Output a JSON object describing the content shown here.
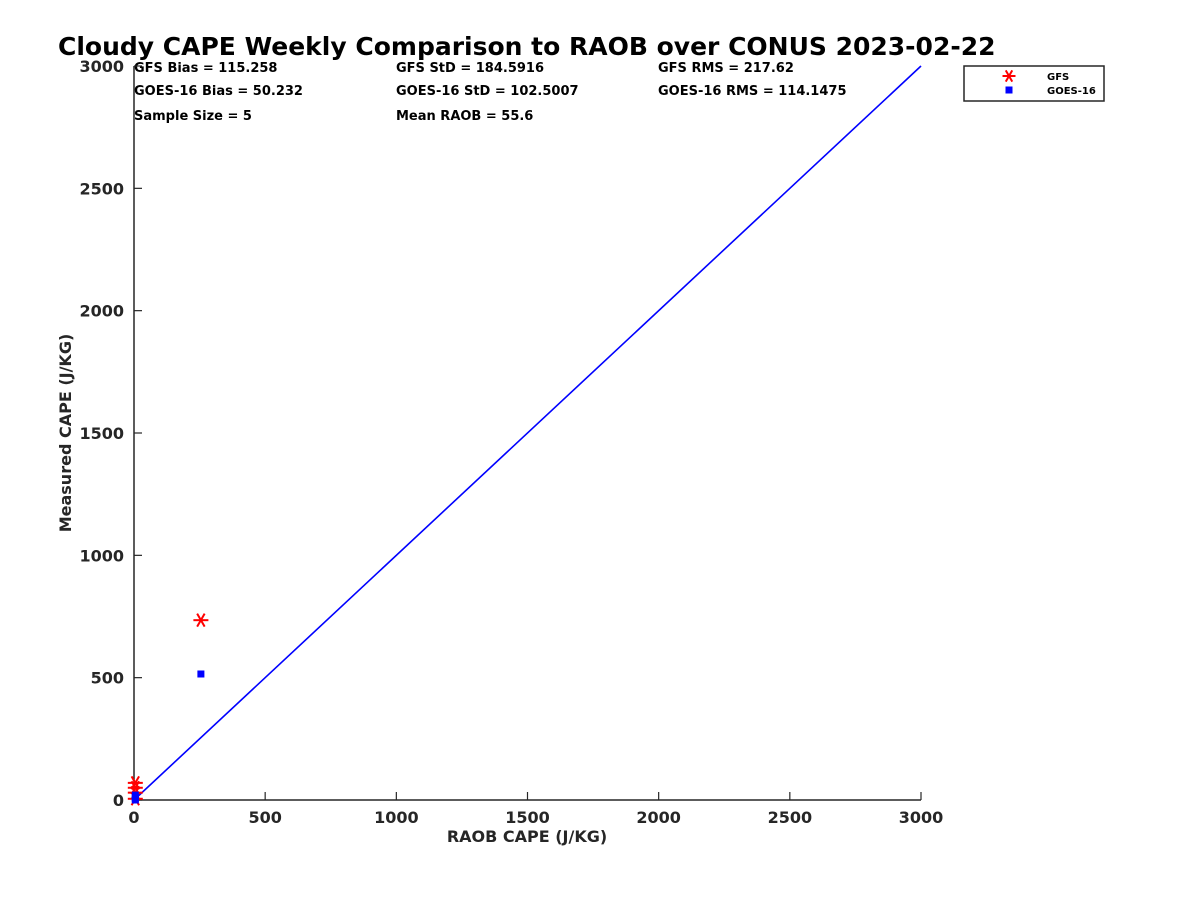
{
  "chart_data": {
    "type": "scatter",
    "title": "Cloudy CAPE Weekly Comparison to RAOB over CONUS 2023-02-22",
    "xlabel": "RAOB CAPE (J/KG)",
    "ylabel": "Measured CAPE (J/KG)",
    "xlim": [
      0,
      3000
    ],
    "ylim": [
      0,
      3000
    ],
    "xticks": [
      "0",
      "500",
      "1000",
      "1500",
      "2000",
      "2500",
      "3000"
    ],
    "yticks": [
      "0",
      "500",
      "1000",
      "1500",
      "2000",
      "2500",
      "3000"
    ],
    "xtick_values": [
      0,
      500,
      1000,
      1500,
      2000,
      2500,
      3000
    ],
    "ytick_values": [
      0,
      500,
      1000,
      1500,
      2000,
      2500,
      3000
    ],
    "grid": false,
    "legend_position": "top-right, outside plot",
    "reference_line": {
      "name": "1:1 line",
      "x": [
        0,
        3000
      ],
      "y": [
        0,
        3000
      ],
      "color": "#0000ff"
    },
    "series": [
      {
        "name": "GFS",
        "marker": "asterisk",
        "color": "#ff0000",
        "x": [
          255,
          5,
          5,
          5,
          5
        ],
        "y": [
          735,
          70,
          50,
          30,
          5
        ]
      },
      {
        "name": "GOES-16",
        "marker": "square",
        "color": "#0000ff",
        "x": [
          255,
          5,
          5,
          5,
          5
        ],
        "y": [
          515,
          20,
          10,
          5,
          0
        ]
      }
    ],
    "stats": [
      "GFS Bias = 115.258",
      "GFS StD = 184.5916",
      "GFS RMS = 217.62",
      "GOES-16 Bias = 50.232",
      "GOES-16 StD = 102.5007",
      "GOES-16 RMS = 114.1475",
      "Sample Size = 5",
      "Mean RAOB = 55.6"
    ]
  }
}
